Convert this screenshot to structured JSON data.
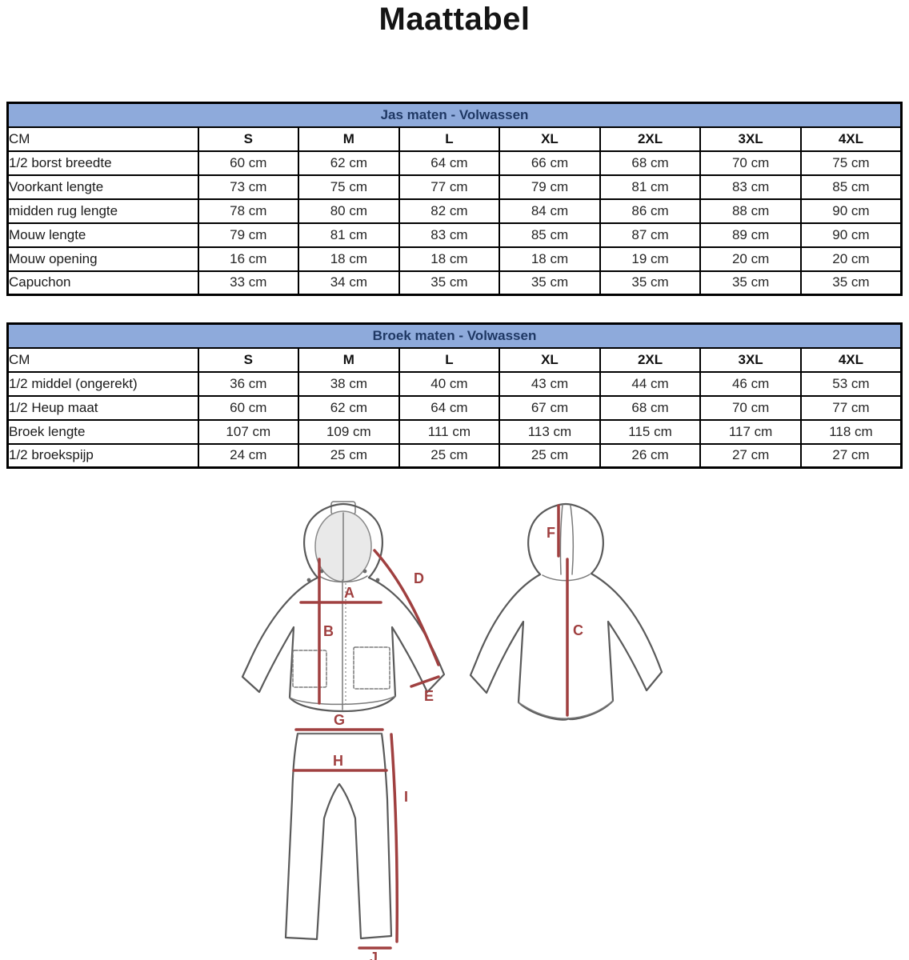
{
  "page": {
    "title": "Maattabel"
  },
  "colors": {
    "table_header_bg": "#8eaadb",
    "table_header_text": "#1f3864",
    "measure_red": "#a04040",
    "garment_outline": "#5a5a5a",
    "hood_fill": "#e9e9e9",
    "title_text": "#141414",
    "cell_text": "#262626"
  },
  "jacket_table": {
    "title": "Jas maten - Volwassen",
    "unit_label": "CM",
    "sizes": [
      "S",
      "M",
      "L",
      "XL",
      "2XL",
      "3XL",
      "4XL"
    ],
    "rows": [
      {
        "label": "1/2 borst breedte",
        "values": [
          "60 cm",
          "62 cm",
          "64 cm",
          "66 cm",
          "68 cm",
          "70 cm",
          "75 cm"
        ]
      },
      {
        "label": "Voorkant lengte",
        "values": [
          "73 cm",
          "75 cm",
          "77 cm",
          "79 cm",
          "81 cm",
          "83 cm",
          "85 cm"
        ]
      },
      {
        "label": "midden rug lengte",
        "values": [
          "78 cm",
          "80 cm",
          "82 cm",
          "84 cm",
          "86 cm",
          "88 cm",
          "90 cm"
        ]
      },
      {
        "label": "Mouw lengte",
        "values": [
          "79 cm",
          "81 cm",
          "83 cm",
          "85 cm",
          "87 cm",
          "89 cm",
          "90 cm"
        ]
      },
      {
        "label": "Mouw opening",
        "values": [
          "16 cm",
          "18 cm",
          "18 cm",
          "18 cm",
          "19 cm",
          "20 cm",
          "20 cm"
        ]
      },
      {
        "label": "Capuchon",
        "values": [
          "33 cm",
          "34 cm",
          "35 cm",
          "35 cm",
          "35 cm",
          "35 cm",
          "35 cm"
        ]
      }
    ]
  },
  "pants_table": {
    "title": "Broek maten - Volwassen",
    "unit_label": "CM",
    "sizes": [
      "S",
      "M",
      "L",
      "XL",
      "2XL",
      "3XL",
      "4XL"
    ],
    "rows": [
      {
        "label": "1/2 middel (ongerekt)",
        "values": [
          "36 cm",
          "38 cm",
          "40 cm",
          "43 cm",
          "44 cm",
          "46 cm",
          "53 cm"
        ]
      },
      {
        "label": "1/2 Heup maat",
        "values": [
          "60 cm",
          "62 cm",
          "64 cm",
          "67 cm",
          "68 cm",
          "70 cm",
          "77 cm"
        ]
      },
      {
        "label": "Broek lengte",
        "values": [
          "107 cm",
          "109 cm",
          "111 cm",
          "113 cm",
          "115 cm",
          "117 cm",
          "118 cm"
        ]
      },
      {
        "label": "1/2 broekspijp",
        "values": [
          "24 cm",
          "25 cm",
          "25 cm",
          "25 cm",
          "26 cm",
          "27 cm",
          "27 cm"
        ]
      }
    ]
  },
  "diagram": {
    "jacket_front": {
      "A": "A",
      "B": "B",
      "D": "D",
      "E": "E"
    },
    "jacket_back": {
      "C": "C",
      "F": "F"
    },
    "pants": {
      "G": "G",
      "H": "H",
      "I": "I",
      "J": "J"
    }
  }
}
